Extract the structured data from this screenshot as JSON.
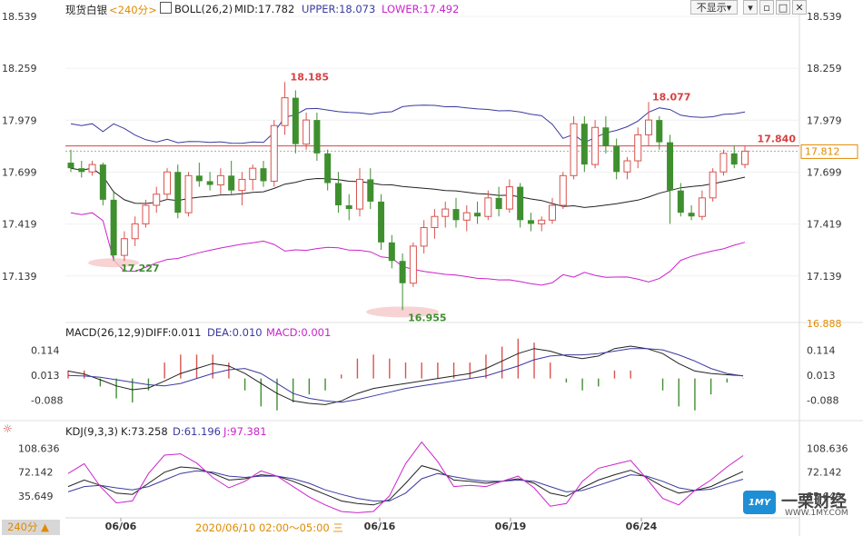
{
  "header": {
    "symbol": "现货白银",
    "period": "<240分>",
    "indicator": "BOLL(26,2)",
    "mid": "MID:17.782",
    "upper": "UPPER:18.073",
    "lower": "LOWER:17.492",
    "hide_button": "不显示▾"
  },
  "macd_header": {
    "name": "MACD(26,12,9)",
    "diff": "DIFF:0.011",
    "dea": "DEA:0.010",
    "macd": "MACD:0.001"
  },
  "kdj_header": {
    "name": "KDJ(9,3,3)",
    "k": "K:73.258",
    "d": "D:61.196",
    "j": "J:97.381"
  },
  "footer": {
    "period_button": "240分 ▲",
    "crosshair_time": "2020/06/10 02:00～05:00 三"
  },
  "watermark": {
    "brand": "一栗财经",
    "url": "WWW.1MY.COM",
    "logo": "1MY"
  },
  "chart_data": [
    {
      "type": "candlestick",
      "panel": "price",
      "y_ticks": [
        "18.539",
        "18.259",
        "17.979",
        "17.699",
        "17.419",
        "17.139"
      ],
      "extra_tick": "16.888",
      "ylim": [
        16.888,
        18.539
      ],
      "x_ticks": [
        "06/06",
        "06/16",
        "06/19",
        "06/24"
      ],
      "current_price": "17.812",
      "ref_line": "17.840",
      "annotations": {
        "high_1": "18.185",
        "high_2": "18.077",
        "low_1": "17.227",
        "low_2": "16.955"
      },
      "colors": {
        "up": "#d9534f",
        "down": "#3f8f2f",
        "mid": "#222222",
        "upper": "#3a3aa0",
        "lower": "#cc22cc",
        "ref": "#d94040"
      },
      "candles": [
        [
          17.75,
          17.82,
          17.7,
          17.72
        ],
        [
          17.72,
          17.76,
          17.67,
          17.7
        ],
        [
          17.7,
          17.76,
          17.68,
          17.74
        ],
        [
          17.74,
          17.75,
          17.52,
          17.55
        ],
        [
          17.55,
          17.6,
          17.22,
          17.25
        ],
        [
          17.25,
          17.38,
          17.22,
          17.34
        ],
        [
          17.34,
          17.46,
          17.3,
          17.42
        ],
        [
          17.42,
          17.55,
          17.4,
          17.52
        ],
        [
          17.52,
          17.62,
          17.48,
          17.58
        ],
        [
          17.58,
          17.72,
          17.55,
          17.7
        ],
        [
          17.7,
          17.74,
          17.45,
          17.48
        ],
        [
          17.48,
          17.7,
          17.46,
          17.68
        ],
        [
          17.68,
          17.75,
          17.62,
          17.65
        ],
        [
          17.65,
          17.7,
          17.6,
          17.63
        ],
        [
          17.63,
          17.72,
          17.58,
          17.68
        ],
        [
          17.68,
          17.76,
          17.58,
          17.6
        ],
        [
          17.6,
          17.7,
          17.52,
          17.66
        ],
        [
          17.66,
          17.74,
          17.6,
          17.72
        ],
        [
          17.72,
          17.76,
          17.62,
          17.65
        ],
        [
          17.65,
          17.98,
          17.62,
          17.95
        ],
        [
          17.95,
          18.185,
          17.9,
          18.1
        ],
        [
          18.1,
          18.14,
          17.8,
          17.85
        ],
        [
          17.85,
          18.02,
          17.82,
          17.98
        ],
        [
          17.98,
          18.02,
          17.76,
          17.8
        ],
        [
          17.8,
          17.82,
          17.6,
          17.64
        ],
        [
          17.64,
          17.7,
          17.48,
          17.52
        ],
        [
          17.52,
          17.58,
          17.44,
          17.5
        ],
        [
          17.5,
          17.72,
          17.46,
          17.66
        ],
        [
          17.66,
          17.72,
          17.5,
          17.54
        ],
        [
          17.54,
          17.58,
          17.28,
          17.32
        ],
        [
          17.32,
          17.36,
          17.18,
          17.22
        ],
        [
          17.22,
          17.26,
          16.955,
          17.1
        ],
        [
          17.1,
          17.32,
          17.08,
          17.3
        ],
        [
          17.3,
          17.44,
          17.26,
          17.4
        ],
        [
          17.4,
          17.5,
          17.34,
          17.46
        ],
        [
          17.46,
          17.54,
          17.4,
          17.5
        ],
        [
          17.5,
          17.56,
          17.4,
          17.44
        ],
        [
          17.44,
          17.52,
          17.38,
          17.48
        ],
        [
          17.48,
          17.54,
          17.42,
          17.46
        ],
        [
          17.46,
          17.6,
          17.44,
          17.56
        ],
        [
          17.56,
          17.62,
          17.46,
          17.5
        ],
        [
          17.5,
          17.66,
          17.48,
          17.62
        ],
        [
          17.62,
          17.64,
          17.4,
          17.44
        ],
        [
          17.44,
          17.48,
          17.38,
          17.42
        ],
        [
          17.42,
          17.46,
          17.38,
          17.44
        ],
        [
          17.44,
          17.56,
          17.42,
          17.52
        ],
        [
          17.52,
          17.7,
          17.5,
          17.68
        ],
        [
          17.68,
          18.0,
          17.66,
          17.96
        ],
        [
          17.96,
          18.0,
          17.7,
          17.74
        ],
        [
          17.74,
          17.98,
          17.72,
          17.94
        ],
        [
          17.94,
          18.0,
          17.8,
          17.84
        ],
        [
          17.84,
          17.88,
          17.66,
          17.7
        ],
        [
          17.7,
          17.78,
          17.66,
          17.76
        ],
        [
          17.76,
          17.94,
          17.72,
          17.9
        ],
        [
          17.9,
          18.077,
          17.84,
          17.98
        ],
        [
          17.98,
          18.0,
          17.82,
          17.86
        ],
        [
          17.86,
          17.9,
          17.42,
          17.6
        ],
        [
          17.6,
          17.64,
          17.46,
          17.48
        ],
        [
          17.48,
          17.52,
          17.44,
          17.46
        ],
        [
          17.46,
          17.6,
          17.44,
          17.56
        ],
        [
          17.56,
          17.72,
          17.54,
          17.7
        ],
        [
          17.7,
          17.82,
          17.68,
          17.8
        ],
        [
          17.8,
          17.84,
          17.72,
          17.74
        ],
        [
          17.74,
          17.84,
          17.72,
          17.812
        ]
      ]
    },
    {
      "type": "histogram+line",
      "panel": "macd",
      "y_ticks": [
        "0.114",
        "0.013",
        "-0.088"
      ],
      "ylim": [
        -0.14,
        0.17
      ],
      "series": [
        {
          "name": "DIFF",
          "color": "#222222",
          "values": [
            0.03,
            0.018,
            -0.005,
            -0.03,
            -0.045,
            -0.038,
            -0.01,
            0.02,
            0.04,
            0.06,
            0.05,
            0.02,
            -0.02,
            -0.06,
            -0.09,
            -0.1,
            -0.105,
            -0.09,
            -0.06,
            -0.04,
            -0.03,
            -0.02,
            -0.01,
            0.0,
            0.01,
            0.02,
            0.04,
            0.07,
            0.1,
            0.12,
            0.11,
            0.09,
            0.08,
            0.09,
            0.12,
            0.13,
            0.12,
            0.1,
            0.06,
            0.03,
            0.02,
            0.015,
            0.011
          ]
        },
        {
          "name": "DEA",
          "color": "#3a3aa0",
          "values": [
            0.012,
            0.01,
            0.005,
            -0.005,
            -0.015,
            -0.025,
            -0.03,
            -0.02,
            0.0,
            0.02,
            0.035,
            0.04,
            0.02,
            -0.02,
            -0.06,
            -0.08,
            -0.09,
            -0.095,
            -0.085,
            -0.07,
            -0.055,
            -0.04,
            -0.03,
            -0.02,
            -0.01,
            0.0,
            0.01,
            0.03,
            0.05,
            0.075,
            0.09,
            0.095,
            0.095,
            0.1,
            0.11,
            0.12,
            0.12,
            0.115,
            0.095,
            0.07,
            0.04,
            0.02,
            0.01
          ]
        },
        {
          "name": "MACD",
          "color": "#cc22cc",
          "values": [
            0.02,
            0.02,
            -0.02,
            -0.05,
            -0.06,
            -0.03,
            0.04,
            0.06,
            0.06,
            0.06,
            0.04,
            -0.03,
            -0.07,
            -0.08,
            -0.06,
            -0.04,
            -0.03,
            0.01,
            0.05,
            0.06,
            0.05,
            0.04,
            0.04,
            0.04,
            0.04,
            0.04,
            0.06,
            0.08,
            0.1,
            0.09,
            0.04,
            -0.01,
            -0.03,
            -0.02,
            0.02,
            0.02,
            0.0,
            -0.03,
            -0.07,
            -0.08,
            -0.04,
            -0.01,
            0.001
          ]
        }
      ]
    },
    {
      "type": "line",
      "panel": "kdj",
      "y_ticks": [
        "108.636",
        "72.142",
        "35.649"
      ],
      "ylim": [
        5,
        130
      ],
      "series": [
        {
          "name": "K",
          "color": "#222222",
          "values": [
            50,
            60,
            52,
            40,
            38,
            55,
            72,
            80,
            78,
            70,
            60,
            62,
            68,
            66,
            58,
            48,
            38,
            28,
            24,
            22,
            30,
            55,
            82,
            75,
            60,
            58,
            55,
            58,
            62,
            55,
            40,
            35,
            48,
            60,
            68,
            75,
            64,
            50,
            40,
            44,
            50,
            62,
            73.258
          ]
        },
        {
          "name": "D",
          "color": "#3a3aa0",
          "values": [
            42,
            50,
            52,
            48,
            45,
            50,
            60,
            70,
            74,
            72,
            66,
            64,
            66,
            66,
            62,
            55,
            45,
            38,
            32,
            28,
            28,
            40,
            62,
            70,
            65,
            61,
            58,
            58,
            60,
            58,
            50,
            42,
            44,
            52,
            60,
            68,
            66,
            58,
            48,
            44,
            46,
            54,
            61.196
          ]
        },
        {
          "name": "J",
          "color": "#cc22cc",
          "values": [
            70,
            85,
            50,
            25,
            28,
            70,
            98,
            100,
            86,
            64,
            48,
            58,
            74,
            66,
            50,
            34,
            22,
            12,
            10,
            12,
            36,
            85,
            118,
            88,
            50,
            52,
            50,
            58,
            66,
            48,
            20,
            24,
            58,
            78,
            84,
            90,
            62,
            32,
            22,
            44,
            60,
            80,
            97.381
          ]
        }
      ]
    }
  ]
}
